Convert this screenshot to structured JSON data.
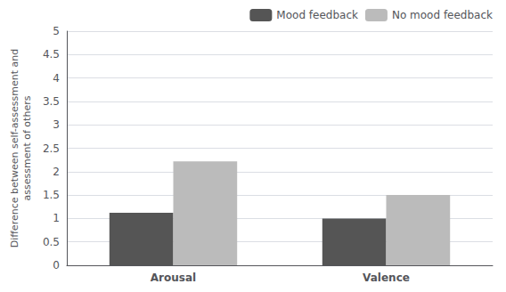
{
  "chart_data": {
    "type": "bar",
    "categories": [
      "Arousal",
      "Valence"
    ],
    "series": [
      {
        "name": "Mood feedback",
        "color": "#555555",
        "values": [
          1.12,
          1.0
        ]
      },
      {
        "name": "No mood feedback",
        "color": "#bbbbbb",
        "values": [
          2.22,
          1.5
        ]
      }
    ],
    "ylabel": "Difference between self-assessment and\nassessment of others",
    "ylim": [
      0,
      5
    ],
    "yticks": [
      0,
      0.5,
      1,
      1.5,
      2,
      2.5,
      3,
      3.5,
      4,
      4.5,
      5
    ],
    "grid": true,
    "legend": "upper right"
  }
}
